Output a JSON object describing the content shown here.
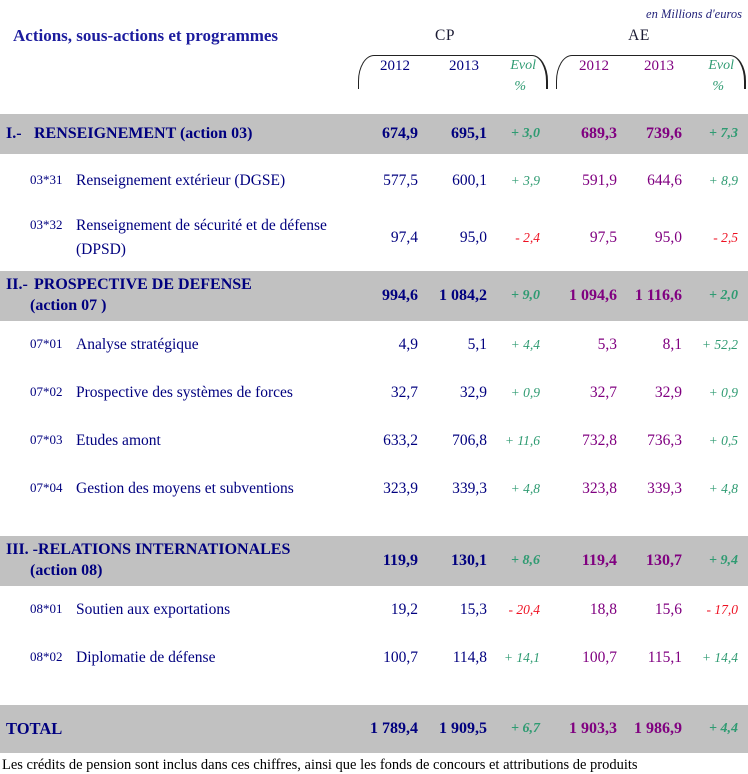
{
  "units_note": "en Millions d'euros",
  "footnote": "Les crédits de pension sont inclus dans ces chiffres, ainsi que les fonds de concours et attributions de produits",
  "colors": {
    "navy": "#00007f",
    "title": "#1c1c9e",
    "purple": "#800080",
    "green": "#2f9b72",
    "red": "#ee1122",
    "band": "#c1c1c1"
  },
  "table": {
    "row_header": "Actions, sous-actions et programmes",
    "groups": [
      {
        "name": "CP",
        "year1": "2012",
        "year2": "2013",
        "evol": "Evol",
        "pct": "%"
      },
      {
        "name": "AE",
        "year1": "2012",
        "year2": "2013",
        "evol": "Evol",
        "pct": "%"
      }
    ],
    "rows": [
      {
        "type": "section",
        "numeral": "I.-",
        "line1": "RENSEIGNEMENT (action 03)",
        "line2": "",
        "values": [
          "674,9",
          "695,1",
          "+ 3,0",
          "689,3",
          "739,6",
          "+ 7,3"
        ]
      },
      {
        "type": "sub",
        "code": "03*31",
        "label": "Renseignement extérieur (DGSE)",
        "values": [
          "577,5",
          "600,1",
          "+ 3,9",
          "591,9",
          "644,6",
          "+ 8,9"
        ]
      },
      {
        "type": "sub",
        "code": "03*32",
        "label": "Renseignement de sécurité et de défense (DPSD)",
        "values": [
          "97,4",
          "95,0",
          "- 2,4",
          "97,5",
          "95,0",
          "- 2,5"
        ]
      },
      {
        "type": "section",
        "numeral": "II.-",
        "line1": "PROSPECTIVE DE DEFENSE",
        "line2": "(action 07 )",
        "values": [
          "994,6",
          "1 084,2",
          "+ 9,0",
          "1 094,6",
          "1 116,6",
          "+ 2,0"
        ]
      },
      {
        "type": "sub",
        "code": "07*01",
        "label": "Analyse stratégique",
        "values": [
          "4,9",
          "5,1",
          "+ 4,4",
          "5,3",
          "8,1",
          "+ 52,2"
        ]
      },
      {
        "type": "sub",
        "code": "07*02",
        "label": "Prospective des systèmes de forces",
        "values": [
          "32,7",
          "32,9",
          "+ 0,9",
          "32,7",
          "32,9",
          "+ 0,9"
        ]
      },
      {
        "type": "sub",
        "code": "07*03",
        "label": "Etudes amont",
        "values": [
          "633,2",
          "706,8",
          "+ 11,6",
          "732,8",
          "736,3",
          "+ 0,5"
        ]
      },
      {
        "type": "sub",
        "code": "07*04",
        "label": "Gestion des moyens et subventions",
        "values": [
          "323,9",
          "339,3",
          "+ 4,8",
          "323,8",
          "339,3",
          "+ 4,8"
        ]
      },
      {
        "type": "section",
        "numeral": "III. -",
        "line1": "RELATIONS INTERNATIONALES",
        "line2": "(action 08)",
        "values": [
          "119,9",
          "130,1",
          "+ 8,6",
          "119,4",
          "130,7",
          "+ 9,4"
        ]
      },
      {
        "type": "sub",
        "code": "08*01",
        "label": "Soutien aux exportations",
        "values": [
          "19,2",
          "15,3",
          "- 20,4",
          "18,8",
          "15,6",
          "- 17,0"
        ]
      },
      {
        "type": "sub",
        "code": "08*02",
        "label": "Diplomatie de défense",
        "values": [
          "100,7",
          "114,8",
          "+ 14,1",
          "100,7",
          "115,1",
          "+ 14,4"
        ]
      }
    ],
    "total": {
      "label": "TOTAL",
      "values": [
        "1 789,4",
        "1 909,5",
        "+ 6,7",
        "1 903,3",
        "1 986,9",
        "+ 4,4"
      ]
    }
  }
}
